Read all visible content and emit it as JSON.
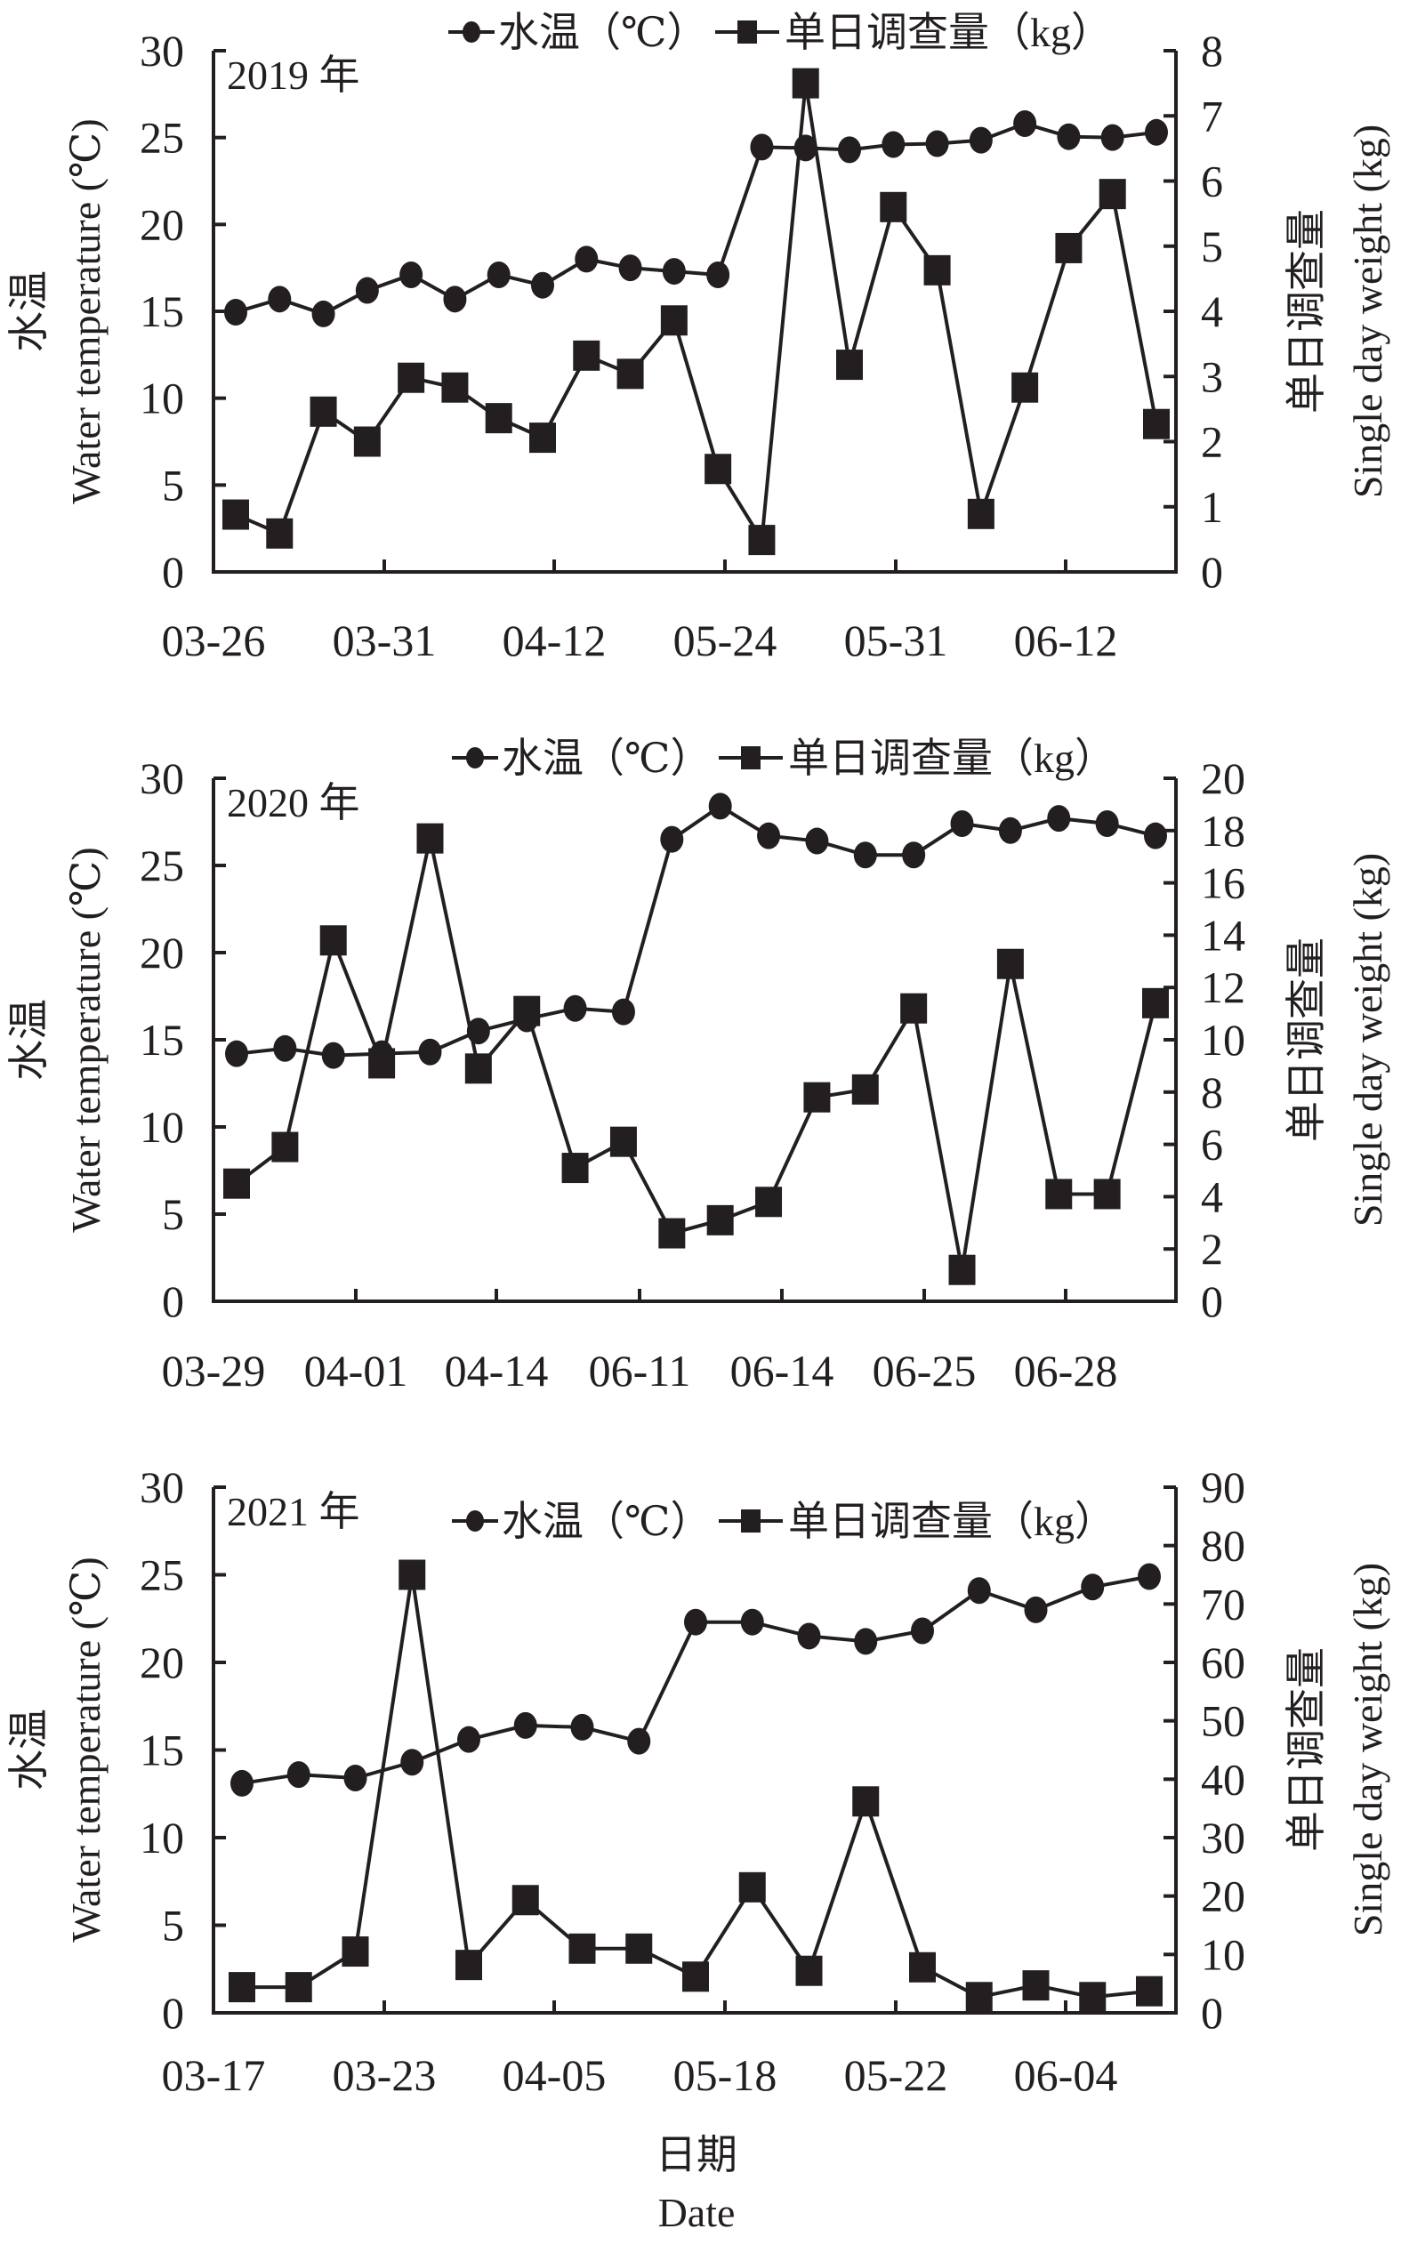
{
  "colors": {
    "ink": "#231f20",
    "background": "#ffffff"
  },
  "legend": {
    "temperature": "水温（℃）",
    "weight": "单日调查量（kg）",
    "temperature_marker": "circle",
    "weight_marker": "square"
  },
  "axis_titles": {
    "left_cn": "水温",
    "left_en": "Water temperature (℃)",
    "right_cn": "单日调查量",
    "right_en": "Single day weight (kg)",
    "x_cn": "日期",
    "x_en": "Date"
  },
  "chart_data": [
    {
      "type": "line",
      "title": "2019 年",
      "xlabel": "日期 Date",
      "ylabel": "水温 Water temperature (℃)",
      "y2label": "单日调查量 Single day weight (kg)",
      "x_tick_labels": [
        "03-26",
        "03-31",
        "04-12",
        "05-24",
        "05-31",
        "06-12"
      ],
      "ylim": [
        0,
        30
      ],
      "yticks": [
        0,
        5,
        10,
        15,
        20,
        25,
        30
      ],
      "y2lim": [
        0,
        8
      ],
      "y2ticks": [
        0,
        1,
        2,
        3,
        4,
        5,
        6,
        7,
        8
      ],
      "legend_position": "top-right, above plot",
      "grid": false,
      "series": [
        {
          "name": "水温（℃）",
          "axis": "left",
          "marker": "circle",
          "values": [
            14.95,
            15.7,
            14.85,
            16.2,
            17.1,
            15.7,
            17.1,
            16.5,
            18.0,
            17.5,
            17.3,
            17.1,
            24.45,
            24.4,
            24.3,
            24.6,
            24.65,
            24.85,
            25.8,
            25.05,
            25.0,
            25.3
          ]
        },
        {
          "name": "单日调查量（kg）",
          "axis": "right",
          "marker": "square",
          "values": [
            0.88,
            0.59,
            2.46,
            2.0,
            2.98,
            2.83,
            2.36,
            2.06,
            3.32,
            3.04,
            3.86,
            1.58,
            0.49,
            7.5,
            3.18,
            5.6,
            4.63,
            0.89,
            2.83,
            4.97,
            5.8,
            2.27
          ]
        }
      ]
    },
    {
      "type": "line",
      "title": "2020 年",
      "xlabel": "日期 Date",
      "ylabel": "水温 Water temperature (℃)",
      "y2label": "单日调查量 Single day weight (kg)",
      "x_tick_labels": [
        "03-29",
        "04-01",
        "04-14",
        "06-11",
        "06-14",
        "06-25",
        "06-28"
      ],
      "ylim": [
        0,
        30
      ],
      "yticks": [
        0,
        5,
        10,
        15,
        20,
        25,
        30
      ],
      "y2lim": [
        0,
        20
      ],
      "y2ticks": [
        0,
        2,
        4,
        6,
        8,
        10,
        12,
        14,
        16,
        18,
        20
      ],
      "legend_position": "top-right, above plot",
      "grid": false,
      "series": [
        {
          "name": "水温（℃）",
          "axis": "left",
          "marker": "circle",
          "values": [
            14.2,
            14.5,
            14.1,
            14.2,
            14.3,
            15.5,
            16.2,
            16.8,
            16.6,
            26.5,
            28.4,
            26.7,
            26.4,
            25.6,
            25.6,
            27.4,
            27.0,
            27.7,
            27.4,
            26.7
          ]
        },
        {
          "name": "单日调查量（kg）",
          "axis": "right",
          "marker": "square",
          "values": [
            4.5,
            5.9,
            13.8,
            9.1,
            17.7,
            8.9,
            11.1,
            5.1,
            6.1,
            2.6,
            3.1,
            3.8,
            7.8,
            8.1,
            11.2,
            1.2,
            12.9,
            4.1,
            4.1,
            11.4
          ]
        }
      ]
    },
    {
      "type": "line",
      "title": "2021 年",
      "xlabel": "日期 Date",
      "ylabel": "水温 Water temperature (℃)",
      "y2label": "单日调查量 Single day weight (kg)",
      "x_tick_labels": [
        "03-17",
        "03-23",
        "04-05",
        "05-18",
        "05-22",
        "06-04"
      ],
      "ylim": [
        0,
        30
      ],
      "yticks": [
        0,
        5,
        10,
        15,
        20,
        25,
        30
      ],
      "y2lim": [
        0,
        90
      ],
      "y2ticks": [
        0,
        10,
        20,
        30,
        40,
        50,
        60,
        70,
        80,
        90
      ],
      "legend_position": "top-right, inside plot",
      "grid": false,
      "series": [
        {
          "name": "水温（℃）",
          "axis": "left",
          "marker": "circle",
          "values": [
            13.1,
            13.6,
            13.4,
            14.3,
            15.6,
            16.4,
            16.3,
            15.5,
            22.3,
            22.3,
            21.5,
            21.2,
            21.8,
            24.1,
            23.0,
            24.3,
            24.9
          ]
        },
        {
          "name": "单日调查量（kg）",
          "axis": "right",
          "marker": "square",
          "values": [
            4.4,
            4.4,
            10.5,
            75,
            8.2,
            19.3,
            11.0,
            11.0,
            6.2,
            21.5,
            7.2,
            36.2,
            7.8,
            2.7,
            4.7,
            2.7,
            3.7
          ]
        }
      ]
    }
  ]
}
